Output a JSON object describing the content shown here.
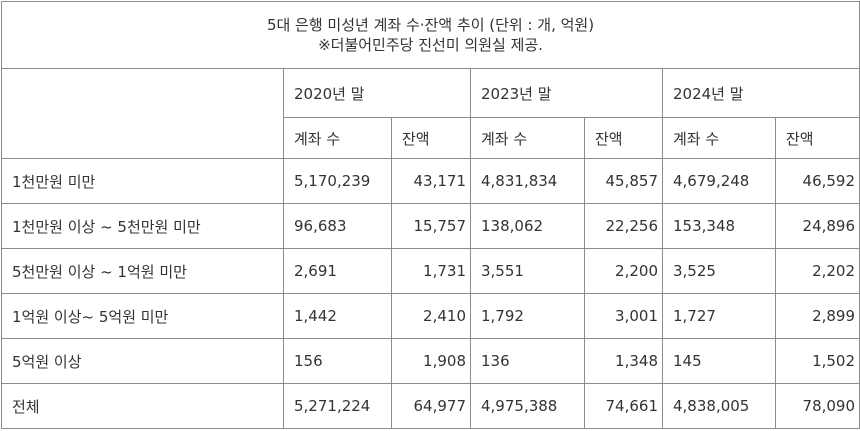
{
  "table": {
    "title": [
      "5대 은행 미성년 계좌 수·잔액 추이 (단위 : 개, 억원)",
      "※더불어민주당 진선미 의원실 제공."
    ],
    "years": [
      "2020년 말",
      "2023년 말",
      "2024년 말"
    ],
    "subheaders": [
      "계좌 수",
      "잔액"
    ],
    "rows": [
      [
        "1천만원 미만",
        "5,170,239",
        "43,171",
        "4,831,834",
        "45,857",
        "4,679,248",
        "46,592"
      ],
      [
        "1천만원 이상 ~ 5천만원 미만",
        "96,683",
        "15,757",
        "138,062",
        "22,256",
        "153,348",
        "24,896"
      ],
      [
        "5천만원 이상 ~ 1억원 미만",
        "2,691",
        "1,731",
        "3,551",
        "2,200",
        "3,525",
        "2,202"
      ],
      [
        "1억원 이상~ 5억원 미만",
        "1,442",
        "2,410",
        "1,792",
        "3,001",
        "1,727",
        "2,899"
      ],
      [
        "5억원 이상",
        "156",
        "1,908",
        "136",
        "1,348",
        "145",
        "1,502"
      ],
      [
        "전체",
        "5,271,224",
        "64,977",
        "4,975,388",
        "74,661",
        "4,838,005",
        "78,090"
      ]
    ]
  }
}
